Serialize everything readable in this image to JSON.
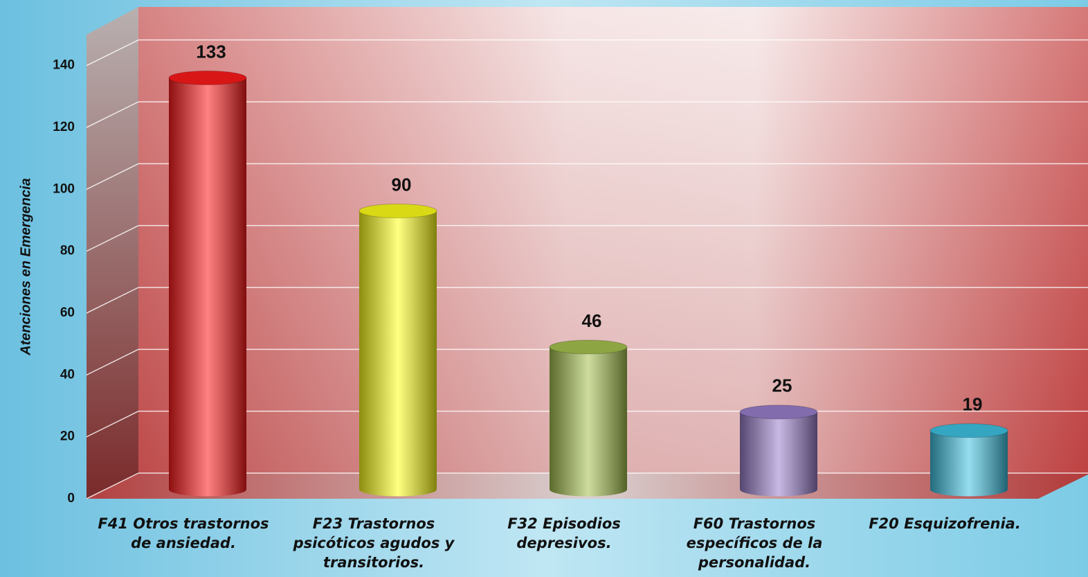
{
  "chart_data": {
    "type": "bar3d",
    "y_label": "Atenciones en Emergencia",
    "categories": [
      "F41 Otros trastornos de ansiedad.",
      "F23 Trastornos psicóticos agudos y transitorios.",
      "F32 Episodios depresivos.",
      "F60 Trastornos específicos de la personalidad.",
      "F20 Esquizofrenia."
    ],
    "values": [
      133,
      90,
      46,
      25,
      19
    ],
    "colors": [
      "#ff1a1a",
      "#ffff1a",
      "#a6c24e",
      "#9a7fcc",
      "#3fc3e3"
    ],
    "ylim": [
      0,
      150
    ],
    "yticks": [
      0,
      20,
      40,
      60,
      80,
      100,
      120,
      140
    ],
    "grid": true
  }
}
